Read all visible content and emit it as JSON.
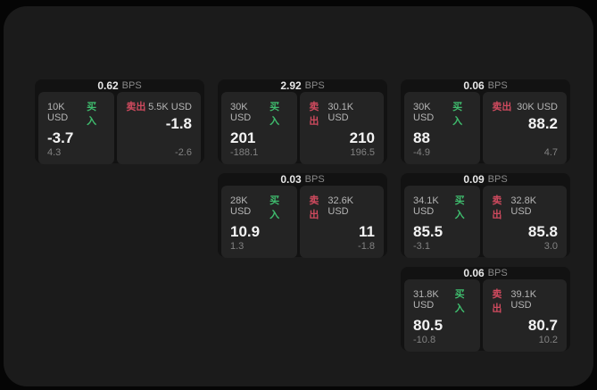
{
  "colors": {
    "buy": "#3fbd6e",
    "sell": "#cf4a5e",
    "window_bg": "#1b1b1b",
    "card_bg": "#121212",
    "tile_bg": "#242424"
  },
  "cards": [
    {
      "spread": "0.62",
      "unit": "BPS",
      "buy": {
        "size": "10K USD",
        "side": "买入",
        "price": "-3.7",
        "delta": "4.3"
      },
      "sell": {
        "side": "卖出",
        "size": "5.5K USD",
        "price": "-1.8",
        "delta": "-2.6"
      }
    },
    {
      "spread": "2.92",
      "unit": "BPS",
      "buy": {
        "size": "30K USD",
        "side": "买入",
        "price": "201",
        "delta": "-188.1"
      },
      "sell": {
        "side": "卖出",
        "size": "30.1K USD",
        "price": "210",
        "delta": "196.5"
      }
    },
    {
      "spread": "0.06",
      "unit": "BPS",
      "buy": {
        "size": "30K USD",
        "side": "买入",
        "price": "88",
        "delta": "-4.9"
      },
      "sell": {
        "side": "卖出",
        "size": "30K USD",
        "price": "88.2",
        "delta": "4.7"
      }
    },
    {
      "spread": "0.03",
      "unit": "BPS",
      "buy": {
        "size": "28K USD",
        "side": "买入",
        "price": "10.9",
        "delta": "1.3"
      },
      "sell": {
        "side": "卖出",
        "size": "32.6K USD",
        "price": "11",
        "delta": "-1.8"
      }
    },
    {
      "spread": "0.09",
      "unit": "BPS",
      "buy": {
        "size": "34.1K USD",
        "side": "买入",
        "price": "85.5",
        "delta": "-3.1"
      },
      "sell": {
        "side": "卖出",
        "size": "32.8K USD",
        "price": "85.8",
        "delta": "3.0"
      }
    },
    {
      "spread": "0.06",
      "unit": "BPS",
      "buy": {
        "size": "31.8K USD",
        "side": "买入",
        "price": "80.5",
        "delta": "-10.8"
      },
      "sell": {
        "side": "卖出",
        "size": "39.1K USD",
        "price": "80.7",
        "delta": "10.2"
      }
    }
  ]
}
